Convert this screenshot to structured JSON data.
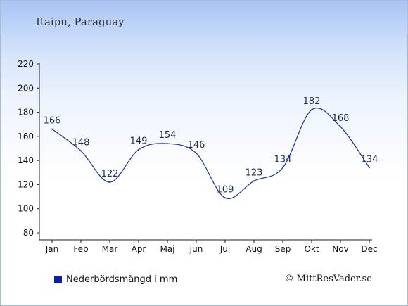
{
  "header": {
    "place": "Itaipu, Paraguay"
  },
  "legend": {
    "label": "Nederbördsmängd i mm",
    "color": "#0b1fa6"
  },
  "credit": {
    "text": "© MittResVader.se"
  },
  "chart_data": {
    "type": "line",
    "categories": [
      "Jan",
      "Feb",
      "Mar",
      "Apr",
      "Maj",
      "Jun",
      "Jul",
      "Aug",
      "Sep",
      "Okt",
      "Nov",
      "Dec"
    ],
    "series": [
      {
        "name": "Nederbördsmängd i mm",
        "values": [
          166,
          148,
          122,
          149,
          154,
          146,
          109,
          123,
          134,
          182,
          168,
          134
        ]
      }
    ],
    "ylim": [
      80,
      220
    ],
    "yticks": [
      80,
      100,
      120,
      140,
      160,
      180,
      200,
      220
    ],
    "line_color": "#1c2f9b",
    "grid": false,
    "legend_position": "bottom-left"
  }
}
